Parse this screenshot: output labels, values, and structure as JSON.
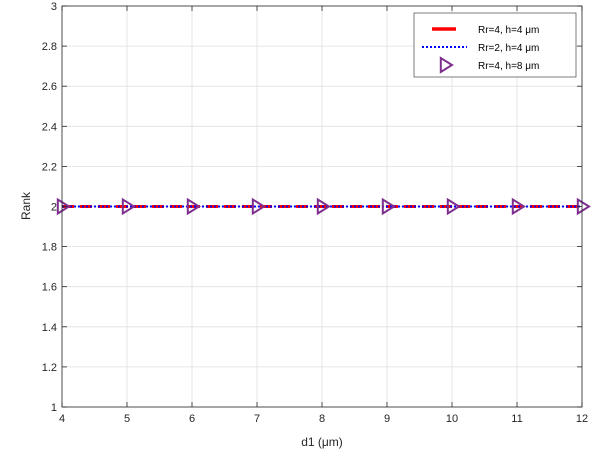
{
  "chart_data": {
    "type": "line",
    "xlabel": "d1 (μm)",
    "ylabel": "Rank",
    "xlim": [
      4,
      12
    ],
    "ylim": [
      1,
      3
    ],
    "x_ticks": [
      "4",
      "5",
      "6",
      "7",
      "8",
      "9",
      "10",
      "11",
      "12"
    ],
    "y_ticks": [
      "1",
      "1.2",
      "1.4",
      "1.6",
      "1.8",
      "2",
      "2.2",
      "2.4",
      "2.6",
      "2.8",
      "3"
    ],
    "grid": true,
    "legend_position": "top-right",
    "series": [
      {
        "name": "Rr=4, h=4 μm",
        "style": "dashed",
        "color": "#ff0000",
        "x": [
          4,
          12
        ],
        "y": [
          2,
          2
        ]
      },
      {
        "name": "Rr=2, h=4 μm",
        "style": "dotted",
        "color": "#0000ff",
        "x": [
          4,
          12
        ],
        "y": [
          2,
          2
        ]
      },
      {
        "name": "Rr=4, h=8 μm",
        "style": "markers",
        "marker": "triangle-right",
        "color": "#7e2f8e",
        "x": [
          4,
          5,
          6,
          7,
          8,
          9,
          10,
          11,
          12
        ],
        "y": [
          2,
          2,
          2,
          2,
          2,
          2,
          2,
          2,
          2
        ]
      }
    ]
  }
}
